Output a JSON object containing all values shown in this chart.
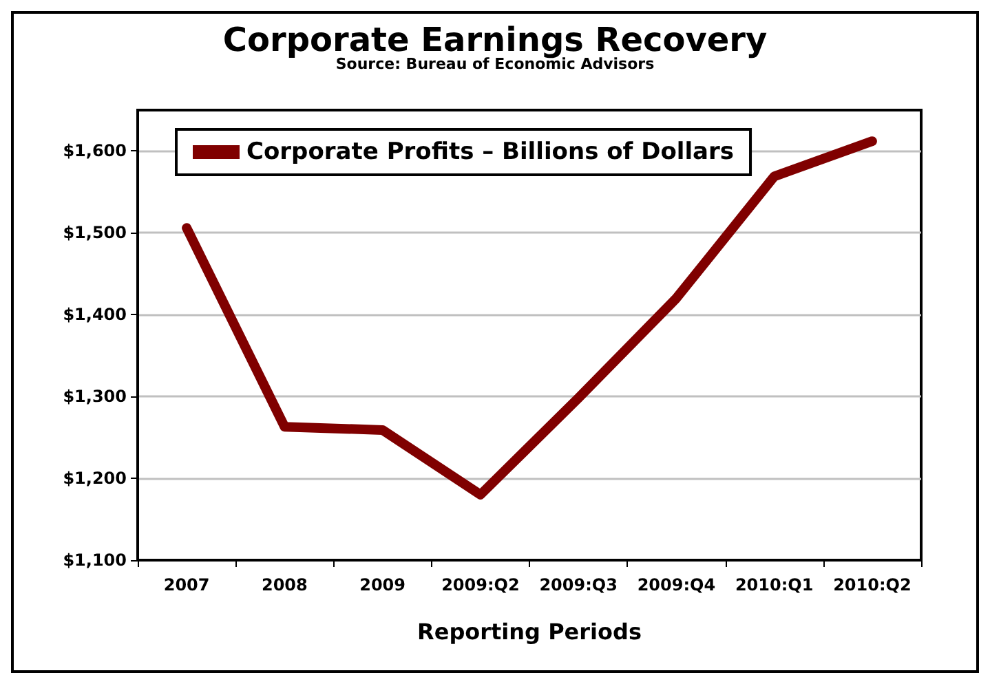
{
  "chart_data": {
    "type": "line",
    "title": "Corporate Earnings Recovery",
    "subtitle": "Source: Bureau of Economic Advisors",
    "xlabel": "Reporting Periods",
    "categories": [
      "2007",
      "2008",
      "2009",
      "2009:Q2",
      "2009:Q3",
      "2009:Q4",
      "2010:Q1",
      "2010:Q2"
    ],
    "series": [
      {
        "name": "Corporate Profits – Billions of Dollars",
        "color": "#800000",
        "values": [
          1506,
          1263,
          1259,
          1180,
          1298,
          1420,
          1569,
          1612
        ]
      }
    ],
    "ylim": [
      1100,
      1650
    ],
    "yticks": [
      {
        "value": 1100,
        "label": "$1,100"
      },
      {
        "value": 1200,
        "label": "$1,200"
      },
      {
        "value": 1300,
        "label": "$1,300"
      },
      {
        "value": 1400,
        "label": "$1,400"
      },
      {
        "value": 1500,
        "label": "$1,500"
      },
      {
        "value": 1600,
        "label": "$1,600"
      }
    ],
    "grid": "y",
    "legend": "top left",
    "line_style": "solid"
  }
}
